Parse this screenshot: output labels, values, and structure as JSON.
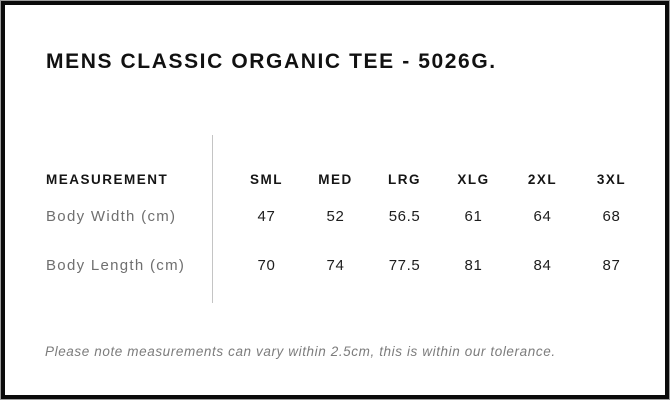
{
  "page": {
    "title": "MENS CLASSIC ORGANIC TEE - 5026G."
  },
  "size_chart": {
    "header_label": "MEASUREMENT",
    "sizes": [
      "SML",
      "MED",
      "LRG",
      "XLG",
      "2XL",
      "3XL"
    ],
    "rows": [
      {
        "label": "Body Width (cm)",
        "values": [
          "47",
          "52",
          "56.5",
          "61",
          "64",
          "68"
        ]
      },
      {
        "label": "Body Length (cm)",
        "values": [
          "70",
          "74",
          "77.5",
          "81",
          "84",
          "87"
        ]
      }
    ]
  },
  "footnote": "Please note measurements can vary within 2.5cm, this is within our tolerance.",
  "colors": {
    "frame_border": "#0b0b0b",
    "outer_edge": "#9c9c9c",
    "title_text": "#111111",
    "header_text": "#151515",
    "value_text": "#1d1d1d",
    "label_text": "#6f6f6f",
    "footnote_text": "#7c7c7c",
    "divider": "#c4c4c4",
    "background": "#ffffff"
  }
}
